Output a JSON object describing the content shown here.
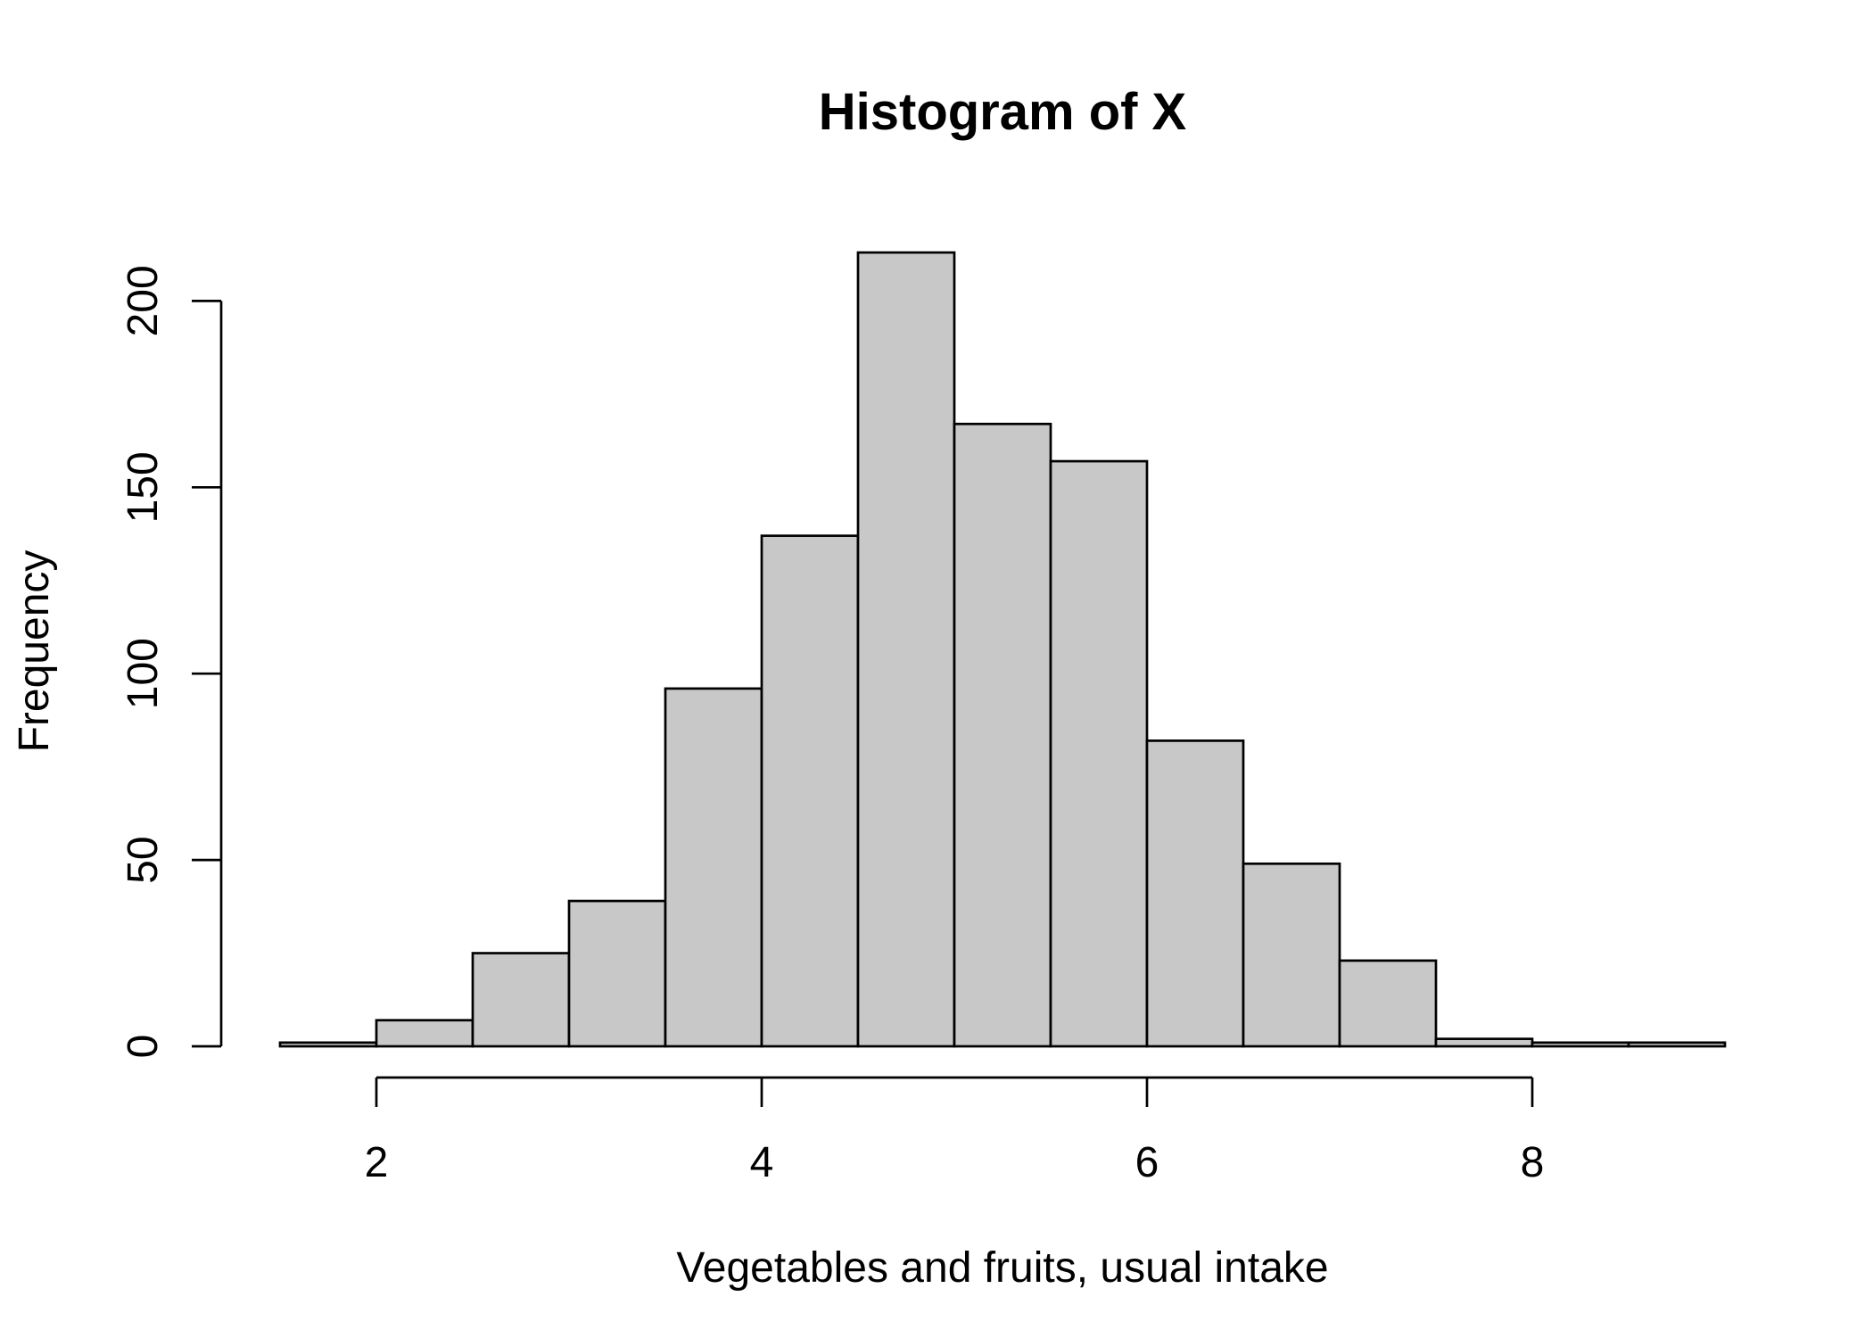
{
  "chart_data": {
    "type": "bar",
    "subtype": "histogram",
    "title": "Histogram of X",
    "xlabel": "Vegetables and fruits, usual intake",
    "ylabel": "Frequency",
    "bin_edges": [
      1.5,
      2.0,
      2.5,
      3.0,
      3.5,
      4.0,
      4.5,
      5.0,
      5.5,
      6.0,
      6.5,
      7.0,
      7.5,
      8.0,
      8.5,
      9.0
    ],
    "values": [
      1,
      7,
      25,
      39,
      96,
      137,
      213,
      167,
      157,
      82,
      49,
      23,
      2,
      1,
      1
    ],
    "xlim": [
      1.5,
      9.0
    ],
    "ylim": [
      0,
      220
    ],
    "x_ticks": [
      2,
      4,
      6,
      8
    ],
    "y_ticks": [
      0,
      50,
      100,
      150,
      200
    ],
    "bar_color": "#c8c8c8",
    "edge_color": "#000000",
    "grid": false,
    "legend": "none"
  }
}
